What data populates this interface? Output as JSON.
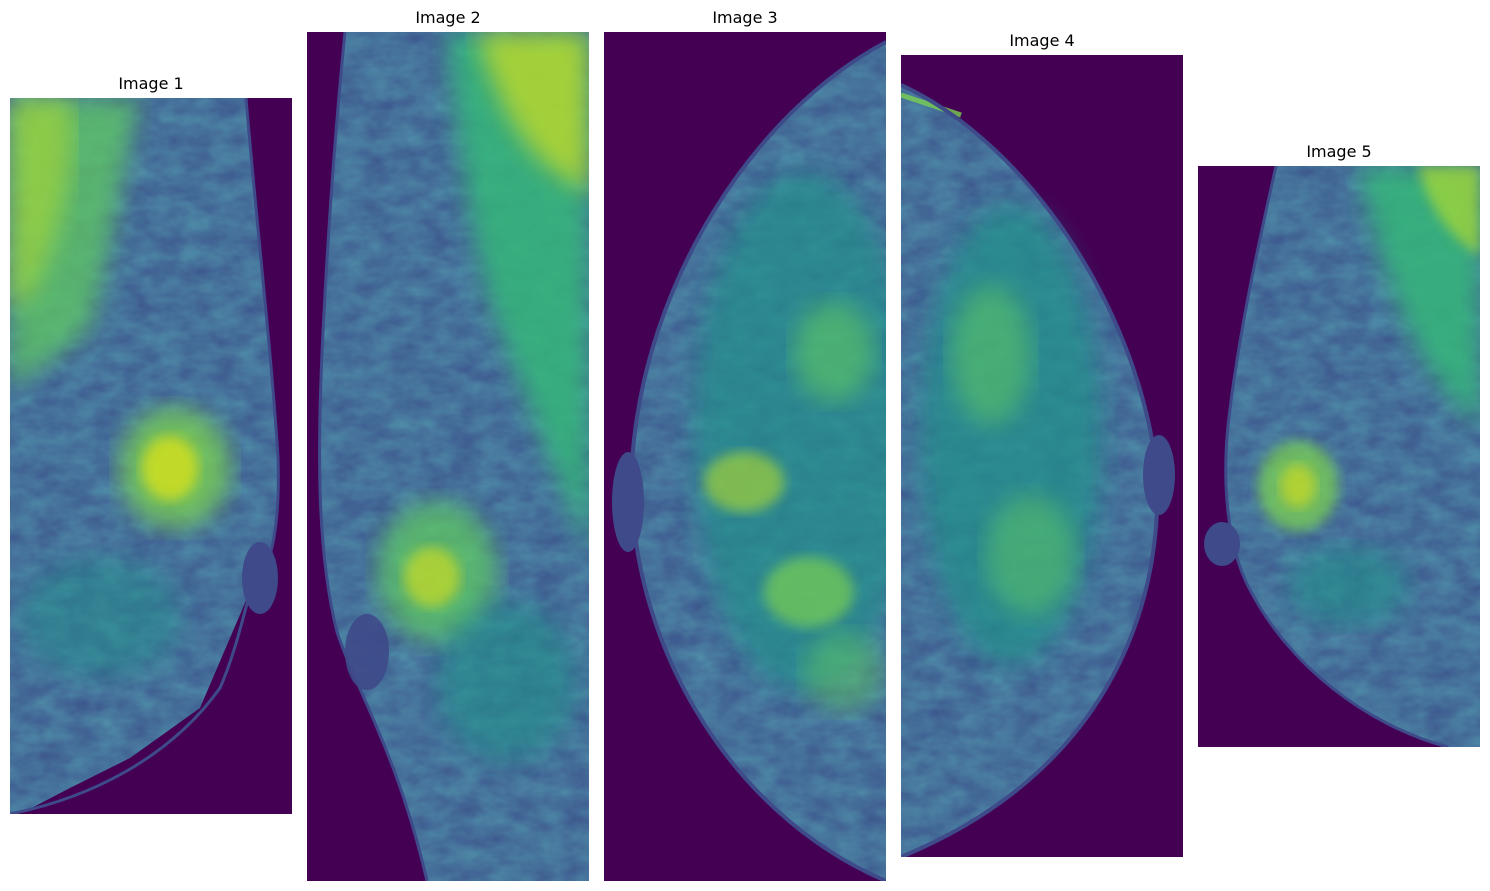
{
  "figure": {
    "colormap": "viridis",
    "background_color": "#440154",
    "panels": [
      {
        "title": "Image 1"
      },
      {
        "title": "Image 2"
      },
      {
        "title": "Image 3"
      },
      {
        "title": "Image 4"
      },
      {
        "title": "Image 5"
      }
    ]
  }
}
